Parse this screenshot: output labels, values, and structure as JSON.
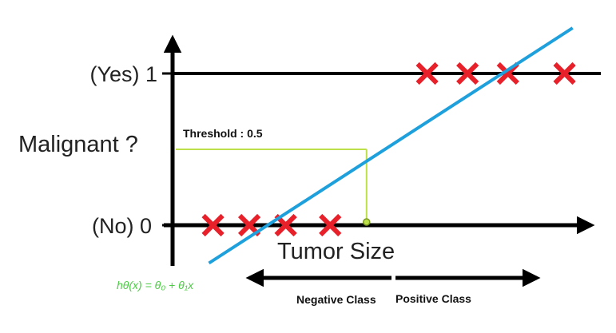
{
  "chart_data": {
    "type": "scatter",
    "title": "",
    "xlabel": "Tumor Size",
    "ylabel": "Malignant ?",
    "y_ticks": [
      {
        "value": 0,
        "label": "(No) 0"
      },
      {
        "value": 1,
        "label": "(Yes) 1"
      }
    ],
    "series": [
      {
        "marker": "x",
        "color": "#e8202a",
        "points": [
          {
            "x": 1.0,
            "y": 0
          },
          {
            "x": 1.9,
            "y": 0
          },
          {
            "x": 2.8,
            "y": 0
          },
          {
            "x": 3.9,
            "y": 0
          },
          {
            "x": 6.3,
            "y": 1
          },
          {
            "x": 7.3,
            "y": 1
          },
          {
            "x": 8.3,
            "y": 1
          },
          {
            "x": 9.7,
            "y": 1
          }
        ]
      }
    ],
    "hypothesis_line": {
      "color": "#1ea0dc",
      "points": [
        {
          "x": 0.9,
          "y": -0.25
        },
        {
          "x": 9.9,
          "y": 1.3
        }
      ]
    },
    "threshold": {
      "label": "Threshold : 0.5",
      "y": 0.5,
      "x_at_threshold": 4.8,
      "color": "#bde04a"
    },
    "formula": {
      "text": "hθ(x) = θ₀ + θ₁x",
      "color": "#4ccc44"
    },
    "class_arrows": {
      "negative_label": "Negative Class",
      "positive_label": "Positive Class"
    },
    "xlim": [
      0,
      10.4
    ],
    "ylim": [
      -0.5,
      1.55
    ],
    "grid": false
  }
}
